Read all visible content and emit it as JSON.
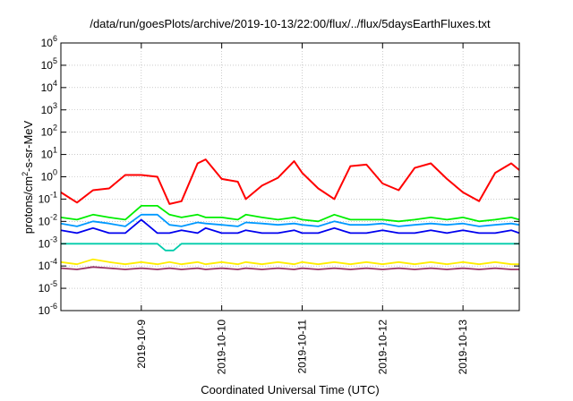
{
  "chart_data": {
    "type": "line",
    "title": "/data/run/goesPlots/archive/2019-10-13/22:00/flux/../flux/5daysEarthFluxes.txt",
    "xlabel": "Coordinated Universal Time (UTC)",
    "ylabel": {
      "pre": "protons/cm",
      "sup": "2",
      "post": "-s-sr-MeV"
    },
    "yscale": "log",
    "ylim": [
      1e-06,
      1000000.0
    ],
    "xlim": [
      0,
      5.7
    ],
    "grid": true,
    "y_ticks": [
      {
        "base": "10",
        "exp": "-6",
        "value": 1e-06
      },
      {
        "base": "10",
        "exp": "-5",
        "value": 1e-05
      },
      {
        "base": "10",
        "exp": "-4",
        "value": 0.0001
      },
      {
        "base": "10",
        "exp": "-3",
        "value": 0.001
      },
      {
        "base": "10",
        "exp": "-2",
        "value": 0.01
      },
      {
        "base": "10",
        "exp": "-1",
        "value": 0.1
      },
      {
        "base": "10",
        "exp": "0",
        "value": 1
      },
      {
        "base": "10",
        "exp": "1",
        "value": 10.0
      },
      {
        "base": "10",
        "exp": "2",
        "value": 100.0
      },
      {
        "base": "10",
        "exp": "3",
        "value": 1000.0
      },
      {
        "base": "10",
        "exp": "4",
        "value": 10000.0
      },
      {
        "base": "10",
        "exp": "5",
        "value": 100000.0
      },
      {
        "base": "10",
        "exp": "6",
        "value": 1000000.0
      }
    ],
    "x_ticks": [
      {
        "label": "2019-10-9",
        "x": 1.0
      },
      {
        "label": "2019-10-10",
        "x": 2.0
      },
      {
        "label": "2019-10-11",
        "x": 3.0
      },
      {
        "label": "2019-10-12",
        "x": 4.0
      },
      {
        "label": "2019-10-13",
        "x": 5.0
      }
    ],
    "series": [
      {
        "color": "#ff0000",
        "x": [
          0,
          0.2,
          0.4,
          0.6,
          0.8,
          1.0,
          1.2,
          1.35,
          1.5,
          1.7,
          1.8,
          2.0,
          2.2,
          2.3,
          2.5,
          2.7,
          2.9,
          3.0,
          3.2,
          3.4,
          3.6,
          3.8,
          4.0,
          4.2,
          4.4,
          4.6,
          4.8,
          5.0,
          5.2,
          5.4,
          5.6,
          5.7
        ],
        "y": [
          0.2,
          0.07,
          0.25,
          0.3,
          1.2,
          1.2,
          1.0,
          0.06,
          0.08,
          4,
          6,
          0.8,
          0.6,
          0.1,
          0.4,
          0.9,
          5,
          1.5,
          0.3,
          0.1,
          3,
          3.5,
          0.5,
          0.25,
          2.5,
          4,
          0.8,
          0.2,
          0.08,
          1.5,
          4,
          2
        ]
      },
      {
        "color": "#00ee00",
        "x": [
          0,
          0.2,
          0.4,
          0.6,
          0.8,
          1.0,
          1.2,
          1.35,
          1.5,
          1.7,
          1.8,
          2.0,
          2.2,
          2.3,
          2.5,
          2.7,
          2.9,
          3.0,
          3.2,
          3.4,
          3.6,
          3.8,
          4.0,
          4.2,
          4.4,
          4.6,
          4.8,
          5.0,
          5.2,
          5.4,
          5.6,
          5.7
        ],
        "y": [
          0.015,
          0.012,
          0.02,
          0.015,
          0.012,
          0.05,
          0.05,
          0.02,
          0.015,
          0.02,
          0.015,
          0.015,
          0.012,
          0.02,
          0.015,
          0.012,
          0.015,
          0.012,
          0.01,
          0.02,
          0.012,
          0.012,
          0.012,
          0.01,
          0.012,
          0.015,
          0.012,
          0.015,
          0.01,
          0.012,
          0.015,
          0.012
        ]
      },
      {
        "color": "#0099ff",
        "x": [
          0,
          0.2,
          0.4,
          0.6,
          0.8,
          1.0,
          1.2,
          1.35,
          1.5,
          1.7,
          1.8,
          2.0,
          2.2,
          2.3,
          2.5,
          2.7,
          2.9,
          3.0,
          3.2,
          3.4,
          3.6,
          3.8,
          4.0,
          4.2,
          4.4,
          4.6,
          4.8,
          5.0,
          5.2,
          5.4,
          5.6,
          5.7
        ],
        "y": [
          0.008,
          0.006,
          0.01,
          0.008,
          0.006,
          0.02,
          0.02,
          0.007,
          0.006,
          0.009,
          0.008,
          0.007,
          0.006,
          0.009,
          0.008,
          0.007,
          0.008,
          0.007,
          0.006,
          0.01,
          0.007,
          0.007,
          0.008,
          0.006,
          0.007,
          0.008,
          0.007,
          0.008,
          0.006,
          0.007,
          0.008,
          0.007
        ]
      },
      {
        "color": "#0000ee",
        "x": [
          0,
          0.2,
          0.4,
          0.6,
          0.8,
          1.0,
          1.2,
          1.35,
          1.5,
          1.7,
          1.8,
          2.0,
          2.2,
          2.3,
          2.5,
          2.7,
          2.9,
          3.0,
          3.2,
          3.4,
          3.6,
          3.8,
          4.0,
          4.2,
          4.4,
          4.6,
          4.8,
          5.0,
          5.2,
          5.4,
          5.6,
          5.7
        ],
        "y": [
          0.004,
          0.003,
          0.005,
          0.003,
          0.003,
          0.012,
          0.003,
          0.003,
          0.004,
          0.003,
          0.005,
          0.003,
          0.003,
          0.004,
          0.003,
          0.003,
          0.004,
          0.003,
          0.003,
          0.005,
          0.003,
          0.003,
          0.004,
          0.003,
          0.003,
          0.004,
          0.003,
          0.004,
          0.003,
          0.003,
          0.004,
          0.003
        ]
      },
      {
        "color": "#00ccaa",
        "x": [
          0,
          0.2,
          0.4,
          0.6,
          0.8,
          1.0,
          1.2,
          1.3,
          1.4,
          1.5,
          1.7,
          1.8,
          2.0,
          2.2,
          2.3,
          2.5,
          2.7,
          2.9,
          3.0,
          3.2,
          3.4,
          3.6,
          3.8,
          4.0,
          4.2,
          4.4,
          4.6,
          4.8,
          5.0,
          5.2,
          5.4,
          5.6,
          5.7
        ],
        "y": [
          0.001,
          0.001,
          0.001,
          0.001,
          0.001,
          0.001,
          0.001,
          0.0005,
          0.0005,
          0.001,
          0.001,
          0.001,
          0.001,
          0.001,
          0.001,
          0.001,
          0.001,
          0.001,
          0.001,
          0.001,
          0.001,
          0.001,
          0.001,
          0.001,
          0.001,
          0.001,
          0.001,
          0.001,
          0.001,
          0.001,
          0.001,
          0.001,
          0.001
        ]
      },
      {
        "color": "#ffee00",
        "x": [
          0,
          0.2,
          0.4,
          0.6,
          0.8,
          1.0,
          1.2,
          1.35,
          1.5,
          1.7,
          1.8,
          2.0,
          2.2,
          2.3,
          2.5,
          2.7,
          2.9,
          3.0,
          3.2,
          3.4,
          3.6,
          3.8,
          4.0,
          4.2,
          4.4,
          4.6,
          4.8,
          5.0,
          5.2,
          5.4,
          5.6,
          5.7
        ],
        "y": [
          0.00015,
          0.00012,
          0.0002,
          0.00015,
          0.00012,
          0.00015,
          0.00012,
          0.00015,
          0.00012,
          0.00015,
          0.00012,
          0.00015,
          0.00012,
          0.00015,
          0.00012,
          0.00015,
          0.00012,
          0.00015,
          0.00012,
          0.00015,
          0.00012,
          0.00015,
          0.00012,
          0.00015,
          0.00012,
          0.00015,
          0.00012,
          0.00015,
          0.00012,
          0.00015,
          0.00012,
          0.00012
        ]
      },
      {
        "color": "#993366",
        "x": [
          0,
          0.2,
          0.4,
          0.6,
          0.8,
          1.0,
          1.2,
          1.35,
          1.5,
          1.7,
          1.8,
          2.0,
          2.2,
          2.3,
          2.5,
          2.7,
          2.9,
          3.0,
          3.2,
          3.4,
          3.6,
          3.8,
          4.0,
          4.2,
          4.4,
          4.6,
          4.8,
          5.0,
          5.2,
          5.4,
          5.6,
          5.7
        ],
        "y": [
          8e-05,
          7e-05,
          9e-05,
          8e-05,
          7e-05,
          8e-05,
          7e-05,
          8e-05,
          7e-05,
          8e-05,
          7e-05,
          8e-05,
          7e-05,
          8e-05,
          7e-05,
          8e-05,
          7e-05,
          8e-05,
          7e-05,
          8e-05,
          7e-05,
          8e-05,
          7e-05,
          8e-05,
          7e-05,
          8e-05,
          7e-05,
          8e-05,
          7e-05,
          8e-05,
          7e-05,
          7e-05
        ]
      }
    ]
  }
}
